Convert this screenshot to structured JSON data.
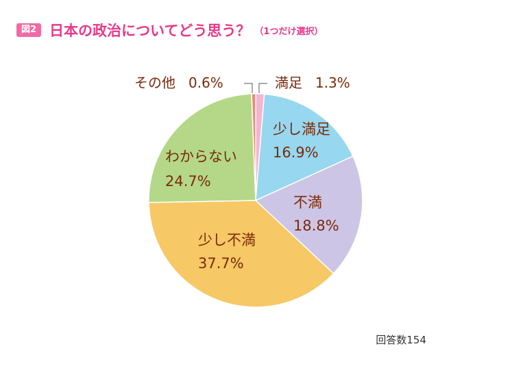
{
  "header": {
    "badge": "図2",
    "title": "日本の政治についてどう思う？",
    "subtitle": "（1つだけ選択）"
  },
  "footnote": "回答数154",
  "colors": {
    "title": "#e8388a",
    "badge": "#f06aa5",
    "label_text": "#7a2a0a"
  },
  "chart_data": {
    "type": "pie",
    "start_angle_deg": 0,
    "direction": "clockwise",
    "slices": [
      {
        "label": "満足",
        "value": 1.3,
        "value_text": "1.3%",
        "color": "#f2b6d2",
        "label_mode": "outside-right"
      },
      {
        "label": "少し満足",
        "value": 16.9,
        "value_text": "16.9%",
        "color": "#97d7ef",
        "label_mode": "inside"
      },
      {
        "label": "不満",
        "value": 18.8,
        "value_text": "18.8%",
        "color": "#cdc5e5",
        "label_mode": "inside"
      },
      {
        "label": "少し不満",
        "value": 37.7,
        "value_text": "37.7%",
        "color": "#f6c866",
        "label_mode": "inside"
      },
      {
        "label": "わからない",
        "value": 24.7,
        "value_text": "24.7%",
        "color": "#b4d888",
        "label_mode": "inside"
      },
      {
        "label": "その他",
        "value": 0.6,
        "value_text": "0.6%",
        "color": "#ef8a75",
        "label_mode": "outside-left"
      }
    ]
  }
}
